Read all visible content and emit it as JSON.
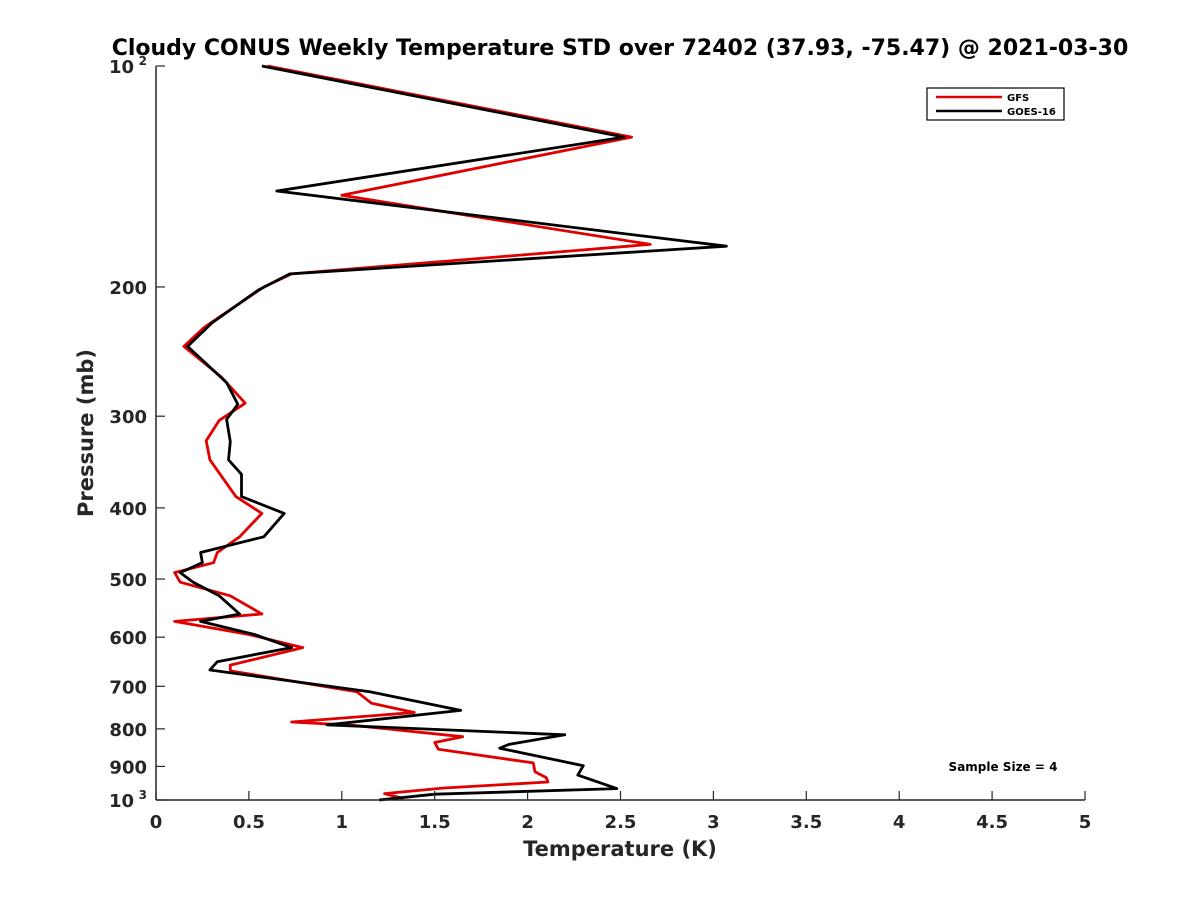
{
  "chart_data": {
    "type": "line",
    "title": "Cloudy CONUS Weekly Temperature STD over 72402 (37.93, -75.47) @ 2021-03-30",
    "xlabel": "Temperature (K)",
    "ylabel": "Pressure (mb)",
    "xlim": [
      0,
      5
    ],
    "ylim": [
      1000,
      100
    ],
    "yscale": "log",
    "x_ticks": [
      "0",
      "0.5",
      "1",
      "1.5",
      "2",
      "2.5",
      "3",
      "3.5",
      "4",
      "4.5",
      "5"
    ],
    "y_ticks": [
      {
        "value": 100,
        "base": "10",
        "exp": "2"
      },
      {
        "value": 200,
        "label": "200"
      },
      {
        "value": 300,
        "label": "300"
      },
      {
        "value": 400,
        "label": "400"
      },
      {
        "value": 500,
        "label": "500"
      },
      {
        "value": 600,
        "label": "600"
      },
      {
        "value": 700,
        "label": "700"
      },
      {
        "value": 800,
        "label": "800"
      },
      {
        "value": 900,
        "label": "900"
      },
      {
        "value": 1000,
        "base": "10",
        "exp": "3"
      }
    ],
    "legend_position": "top-right",
    "annotation": "Sample Size = 4",
    "series": [
      {
        "name": "GFS",
        "color": "#e00000",
        "points": [
          [
            0.6,
            100
          ],
          [
            2.56,
            125
          ],
          [
            1.0,
            150
          ],
          [
            2.66,
            175
          ],
          [
            0.73,
            192
          ],
          [
            0.58,
            200
          ],
          [
            0.26,
            227
          ],
          [
            0.15,
            241
          ],
          [
            0.35,
            265
          ],
          [
            0.48,
            288
          ],
          [
            0.34,
            304
          ],
          [
            0.27,
            324
          ],
          [
            0.29,
            344
          ],
          [
            0.43,
            386
          ],
          [
            0.57,
            407
          ],
          [
            0.45,
            438
          ],
          [
            0.33,
            460
          ],
          [
            0.31,
            475
          ],
          [
            0.1,
            490
          ],
          [
            0.13,
            505
          ],
          [
            0.4,
            527
          ],
          [
            0.57,
            558
          ],
          [
            0.1,
            571
          ],
          [
            0.5,
            595
          ],
          [
            0.79,
            620
          ],
          [
            0.4,
            655
          ],
          [
            0.4,
            667
          ],
          [
            1.08,
            712
          ],
          [
            1.16,
            738
          ],
          [
            1.39,
            760
          ],
          [
            0.73,
            783
          ],
          [
            1.06,
            791
          ],
          [
            1.65,
            820
          ],
          [
            1.5,
            835
          ],
          [
            1.52,
            853
          ],
          [
            2.03,
            890
          ],
          [
            2.04,
            915
          ],
          [
            2.1,
            932
          ],
          [
            2.11,
            945
          ],
          [
            1.55,
            963
          ],
          [
            1.23,
            980
          ],
          [
            1.33,
            995
          ]
        ]
      },
      {
        "name": "GOES-16",
        "color": "#000000",
        "points": [
          [
            0.57,
            100
          ],
          [
            2.52,
            125
          ],
          [
            0.65,
            148
          ],
          [
            3.07,
            176
          ],
          [
            0.72,
            192
          ],
          [
            0.55,
            202
          ],
          [
            0.3,
            224
          ],
          [
            0.17,
            241
          ],
          [
            0.38,
            270
          ],
          [
            0.44,
            289
          ],
          [
            0.38,
            303
          ],
          [
            0.4,
            325
          ],
          [
            0.39,
            344
          ],
          [
            0.46,
            360
          ],
          [
            0.46,
            386
          ],
          [
            0.69,
            407
          ],
          [
            0.58,
            438
          ],
          [
            0.24,
            460
          ],
          [
            0.25,
            475
          ],
          [
            0.13,
            490
          ],
          [
            0.2,
            505
          ],
          [
            0.34,
            527
          ],
          [
            0.45,
            558
          ],
          [
            0.24,
            571
          ],
          [
            0.53,
            595
          ],
          [
            0.73,
            620
          ],
          [
            0.33,
            648
          ],
          [
            0.29,
            665
          ],
          [
            1.15,
            712
          ],
          [
            1.64,
            755
          ],
          [
            0.92,
            790
          ],
          [
            2.2,
            815
          ],
          [
            1.9,
            840
          ],
          [
            1.85,
            850
          ],
          [
            2.3,
            898
          ],
          [
            2.27,
            925
          ],
          [
            2.48,
            965
          ],
          [
            1.5,
            982
          ],
          [
            1.2,
            1000
          ]
        ]
      }
    ]
  }
}
